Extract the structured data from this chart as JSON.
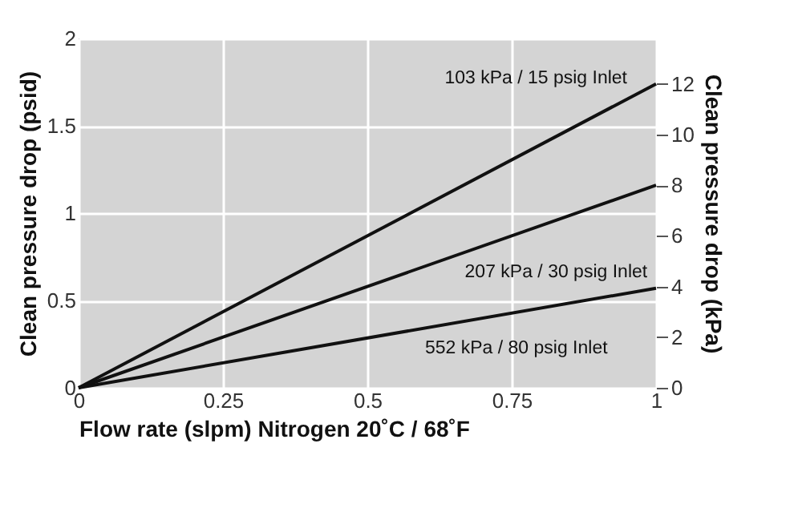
{
  "chart_data": {
    "type": "line",
    "xlabel": "Flow rate (slpm) Nitrogen 20˚C / 68˚F",
    "ylabel": "Clean pressure drop (psid)",
    "y2label": "Clean pressure drop (kPa)",
    "x": [
      0,
      1
    ],
    "xlim": [
      0,
      1
    ],
    "xticks": [
      0,
      0.25,
      0.5,
      0.75,
      1
    ],
    "ylim": [
      0,
      2
    ],
    "yticks": [
      0,
      0.5,
      1,
      1.5,
      2
    ],
    "y2lim": [
      0,
      13.79
    ],
    "y2ticks": [
      0,
      2,
      4,
      6,
      8,
      10,
      12
    ],
    "grid": true,
    "series": [
      {
        "name": "103 kPa / 15 psig Inlet",
        "color": "#111111",
        "values": [
          0,
          1.74
        ]
      },
      {
        "name": "207 kPa / 30 psig Inlet",
        "color": "#111111",
        "values": [
          0,
          1.16
        ]
      },
      {
        "name": "552 kPa / 80 psig Inlet",
        "color": "#111111",
        "values": [
          0,
          0.57
        ]
      }
    ]
  }
}
